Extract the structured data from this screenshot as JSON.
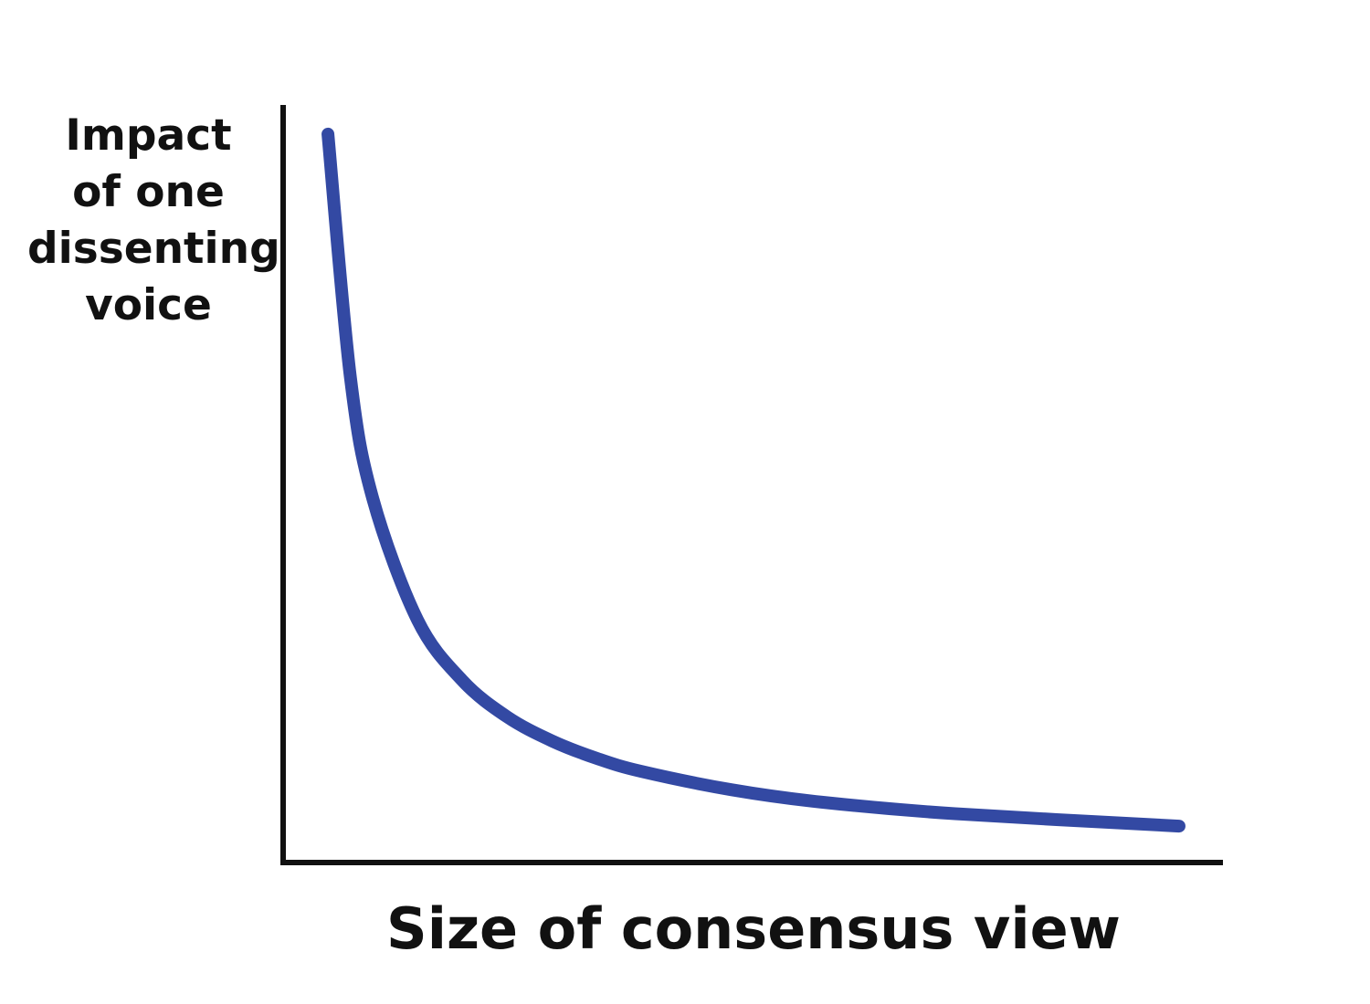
{
  "chart_data": {
    "type": "line",
    "title": "",
    "xlabel": "Size of consensus view",
    "ylabel_lines": [
      "Impact",
      "of one",
      "dissenting",
      "voice"
    ],
    "x": [
      1,
      1.5,
      2,
      3,
      4,
      5,
      6,
      7,
      8,
      10,
      12,
      15,
      20
    ],
    "series": [
      {
        "values": [
          1.0,
          0.667,
          0.5,
          0.333,
          0.25,
          0.2,
          0.167,
          0.143,
          0.125,
          0.1,
          0.083,
          0.067,
          0.05
        ]
      }
    ],
    "xlim": [
      0,
      21
    ],
    "ylim": [
      0,
      1.04
    ],
    "grid": false,
    "ticks": false,
    "colors": {
      "line": "#3349A3",
      "axis": "#111111"
    }
  }
}
